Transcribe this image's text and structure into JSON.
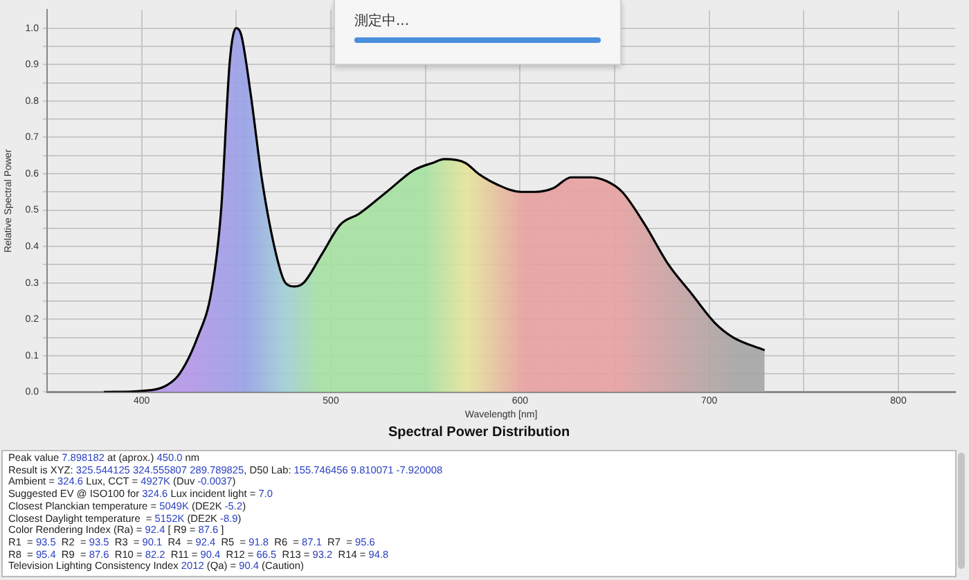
{
  "chart_data": {
    "type": "area",
    "title": "Spectral Power Distribution",
    "xlabel": "Wavelength [nm]",
    "ylabel": "Relative Spectral Power",
    "x": [
      380,
      400,
      412,
      420,
      429.5,
      437,
      442,
      446.6,
      450,
      452.7,
      457.6,
      463.7,
      471,
      476,
      481,
      485.6,
      495.4,
      505,
      515,
      529.5,
      544,
      554,
      560,
      571,
      578,
      588,
      600.5,
      608,
      617.5,
      627,
      637,
      645.6,
      654,
      666,
      678.5,
      690.7,
      703,
      712.7,
      729.3
    ],
    "series": [
      {
        "color": "#000000",
        "values": [
          0,
          0.003,
          0.015,
          0.05,
          0.15,
          0.28,
          0.5,
          0.91,
          1.0,
          0.98,
          0.82,
          0.58,
          0.38,
          0.3,
          0.29,
          0.3,
          0.38,
          0.46,
          0.49,
          0.55,
          0.61,
          0.63,
          0.64,
          0.63,
          0.6,
          0.57,
          0.55,
          0.55,
          0.56,
          0.59,
          0.59,
          0.58,
          0.55,
          0.46,
          0.35,
          0.27,
          0.19,
          0.15,
          0.115
        ]
      }
    ],
    "xlim": [
      350,
      830
    ],
    "xticks": [
      400,
      {
        "value": 450,
        "label": null
      },
      500,
      {
        "value": 550,
        "label": null
      },
      600,
      {
        "value": 650,
        "label": null
      },
      700,
      {
        "value": 750,
        "label": null
      },
      800
    ],
    "ylim": [
      0,
      1.05
    ],
    "yticks": [
      {
        "value": 0,
        "label": "0.0"
      },
      {
        "value": 0.05,
        "label": null
      },
      0.1,
      {
        "value": 0.15,
        "label": null
      },
      0.2,
      {
        "value": 0.25,
        "label": null
      },
      0.3,
      {
        "value": 0.35,
        "label": null
      },
      0.4,
      {
        "value": 0.45,
        "label": null
      },
      0.5,
      {
        "value": 0.55,
        "label": null
      },
      0.6,
      {
        "value": 0.65,
        "label": null
      },
      0.7,
      {
        "value": 0.75,
        "label": null
      },
      0.8,
      {
        "value": 0.85,
        "label": null
      },
      0.9,
      {
        "value": 0.95,
        "label": null
      },
      {
        "value": 1,
        "label": "1.0"
      }
    ],
    "grid": true,
    "legend": false,
    "marker": "none",
    "line_style": "solid",
    "annotations": [
      "測定中...",
      "Peak value 7.898182 at (aprox.) 450.0 nm",
      "Result is XYZ: 325.544125 324.555807 289.789825, D50 Lab: 155.746456 9.810071 -7.920008",
      "Ambient = 324.6 Lux, CCT = 4927K (Duv -0.0037)",
      "Suggested EV @ ISO100 for 324.6 Lux incident light = 7.0",
      "Closest Planckian temperature = 5049K (DE2K -5.2)",
      "Closest Daylight temperature  = 5152K (DE2K -8.9)",
      "Color Rendering Index (Ra) = 92.4 [ R9 = 87.6 ]",
      "R1  = 93.5  R2  = 93.5  R3  = 90.1  R4  = 92.4  R5  = 91.8  R6  = 87.1  R7  = 95.6",
      "R8  = 95.4  R9  = 87.6  R10 = 82.2  R11 = 90.4  R12 = 66.5  R13 = 93.2  R14 = 94.8",
      "Television Lighting Consistency Index 2012 (Qa) = 90.4 (Caution)"
    ]
  }
}
